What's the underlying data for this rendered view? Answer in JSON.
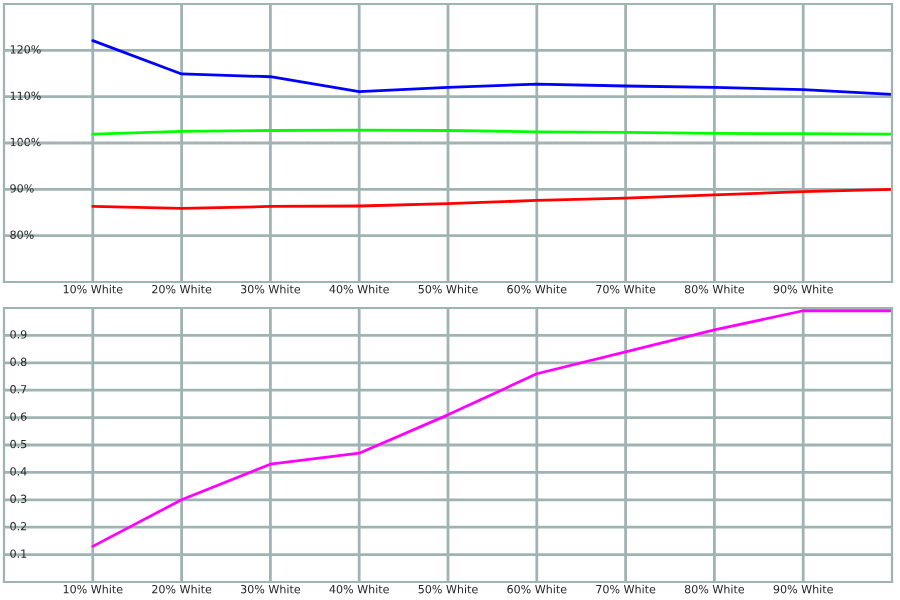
{
  "chart_data": [
    {
      "type": "line",
      "x": [
        10,
        20,
        30,
        40,
        50,
        60,
        70,
        80,
        90,
        100
      ],
      "series": [
        {
          "color": "#0000ff",
          "values": [
            122.1,
            114.9,
            114.3,
            111.1,
            112.0,
            112.7,
            112.3,
            112.0,
            111.5,
            110.5
          ]
        },
        {
          "color": "#00ff00",
          "values": [
            101.9,
            102.5,
            102.7,
            102.8,
            102.7,
            102.4,
            102.3,
            102.1,
            102.0,
            101.9
          ]
        },
        {
          "color": "#ff0000",
          "values": [
            86.3,
            85.9,
            86.3,
            86.4,
            86.9,
            87.6,
            88.1,
            88.8,
            89.5,
            90.0
          ]
        }
      ],
      "xlim": [
        0,
        100
      ],
      "xticks": [
        {
          "value": 10,
          "label": "10% White"
        },
        {
          "value": 20,
          "label": "20% White"
        },
        {
          "value": 30,
          "label": "30% White"
        },
        {
          "value": 40,
          "label": "40% White"
        },
        {
          "value": 50,
          "label": "50% White"
        },
        {
          "value": 60,
          "label": "60% White"
        },
        {
          "value": 70,
          "label": "70% White"
        },
        {
          "value": 80,
          "label": "80% White"
        },
        {
          "value": 90,
          "label": "90% White"
        }
      ],
      "ylim": [
        70,
        130
      ],
      "yticks": [
        {
          "value": 80,
          "label": "80%"
        },
        {
          "value": 90,
          "label": "90%"
        },
        {
          "value": 100,
          "label": "100%"
        },
        {
          "value": 110,
          "label": "110%"
        },
        {
          "value": 120,
          "label": "120%"
        }
      ],
      "ref_lines": [
        {
          "axis": "y",
          "value": 100,
          "color": "#b0b0b0",
          "line_style": "dotted"
        }
      ],
      "grid": true,
      "legend": false,
      "marker": "none",
      "line_style": "solid"
    },
    {
      "type": "line",
      "x": [
        10,
        20,
        30,
        40,
        50,
        60,
        70,
        80,
        90,
        100
      ],
      "series": [
        {
          "color": "#ff00ff",
          "values": [
            0.13,
            0.3,
            0.43,
            0.47,
            0.61,
            0.76,
            0.84,
            0.92,
            0.99,
            0.99
          ]
        }
      ],
      "xlim": [
        0,
        100
      ],
      "xticks": [
        {
          "value": 10,
          "label": "10% White"
        },
        {
          "value": 20,
          "label": "20% White"
        },
        {
          "value": 30,
          "label": "30% White"
        },
        {
          "value": 40,
          "label": "40% White"
        },
        {
          "value": 50,
          "label": "50% White"
        },
        {
          "value": 60,
          "label": "60% White"
        },
        {
          "value": 70,
          "label": "70% White"
        },
        {
          "value": 80,
          "label": "80% White"
        },
        {
          "value": 90,
          "label": "90% White"
        }
      ],
      "ylim": [
        0,
        1
      ],
      "yticks": [
        0.1,
        0.2,
        0.3,
        0.4,
        0.5,
        0.6,
        0.7,
        0.8,
        0.9
      ],
      "grid": true,
      "legend": false,
      "marker": "none",
      "line_style": "solid"
    }
  ]
}
